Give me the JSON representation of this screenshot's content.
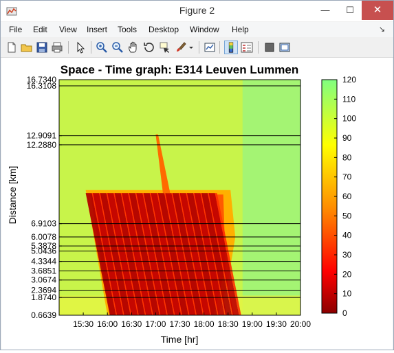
{
  "window": {
    "title": "Figure 2",
    "minimize": "—",
    "maximize": "☐",
    "close": "✕"
  },
  "menu": {
    "items": [
      "File",
      "Edit",
      "View",
      "Insert",
      "Tools",
      "Desktop",
      "Window",
      "Help"
    ],
    "dock_arrow": "↘"
  },
  "toolbar": {
    "buttons": [
      "new-figure-icon",
      "open-file-icon",
      "save-icon",
      "print-icon",
      "pointer-icon",
      "zoom-in-icon",
      "zoom-out-icon",
      "pan-hand-icon",
      "rotate-3d-icon",
      "data-cursor-icon",
      "brush-icon",
      "dropdown-arrow-icon",
      "link-plot-icon",
      "colorbar-icon",
      "legend-icon",
      "hide-plot-tools-icon",
      "show-plot-tools-icon"
    ],
    "active": "colorbar-icon"
  },
  "chart_data": {
    "type": "heatmap",
    "title": "Space - Time graph: E314 Leuven Lummen",
    "xlabel": "Time [hr]",
    "ylabel": "Distance [km]",
    "x_ticks": [
      "15:30",
      "16:00",
      "16:30",
      "17:00",
      "17:30",
      "18:00",
      "18:30",
      "19:00",
      "19:30",
      "20:00"
    ],
    "y_ticks": [
      "0.6639",
      "1.8740",
      "2.3694",
      "3.0674",
      "3.6851",
      "4.3344",
      "5.0436",
      "5.3878",
      "6.0078",
      "6.9103",
      "12.2880",
      "12.9091",
      "16.3108",
      "16.7340"
    ],
    "y_values": [
      0.6639,
      1.874,
      2.3694,
      3.0674,
      3.6851,
      4.3344,
      5.0436,
      5.3878,
      6.0078,
      6.9103,
      12.288,
      12.9091,
      16.3108,
      16.734
    ],
    "ylim": [
      0.6639,
      16.734
    ],
    "xlim_hours": [
      15.0,
      20.0
    ],
    "detector_lines_km": [
      1.874,
      2.3694,
      3.0674,
      3.6851,
      4.3344,
      5.0436,
      5.3878,
      6.0078,
      6.9103,
      12.288,
      12.9091,
      16.3108
    ],
    "colorbar": {
      "label_values": [
        "0",
        "10",
        "20",
        "30",
        "40",
        "50",
        "60",
        "70",
        "80",
        "90",
        "100",
        "110",
        "120"
      ],
      "range": [
        0,
        120
      ],
      "colormap": [
        "#8b0000",
        "#ff0000",
        "#ffa500",
        "#ffff00",
        "#7fff7f"
      ]
    },
    "congestion": {
      "description_values": {
        "free_flow_speed": 100,
        "congested_speed": 15
      },
      "wave_start_hours": [
        15.55,
        15.7,
        15.85,
        16.0,
        16.15,
        16.3,
        16.45,
        16.6,
        16.75,
        16.9,
        17.05,
        17.2,
        17.35,
        17.5,
        17.65,
        17.8,
        17.95,
        18.1
      ]
    }
  }
}
